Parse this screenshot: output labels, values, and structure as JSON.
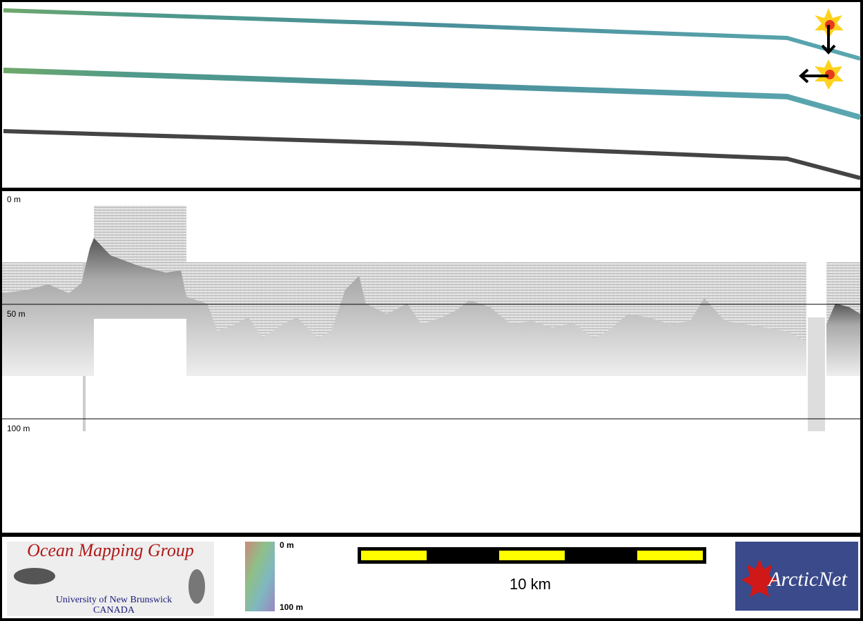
{
  "profile": {
    "depth_labels": [
      "0 m",
      "50 m",
      "100 m"
    ]
  },
  "footer": {
    "logo": {
      "title": "Ocean Mapping Group",
      "line1": "University of New Brunswick",
      "line2": "CANADA"
    },
    "color_scale": {
      "top": "0 m",
      "bottom": "100 m"
    },
    "scale_bar": {
      "label": "10 km"
    },
    "partner": "ArcticNet"
  }
}
